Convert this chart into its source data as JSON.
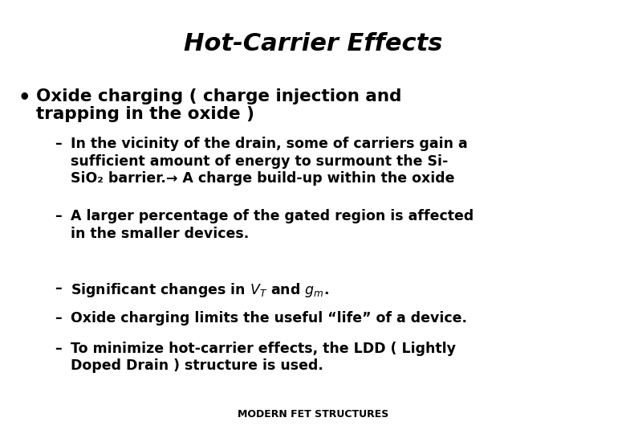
{
  "title": "Hot-Carrier Effects",
  "title_fontsize": 22,
  "bullet_text_line1": "Oxide charging ( charge injection and",
  "bullet_text_line2": "trapping in the oxide )",
  "bullet_fontsize": 15.5,
  "sub_bullets": [
    "In the vicinity of the drain, some of carriers gain a\nsufficient amount of energy to surmount the Si-\nSiO₂ barrier.→ A charge build-up within the oxide",
    "A larger percentage of the gated region is affected\nin the smaller devices.",
    "Significant changes in $V_T$ and $g_m$.",
    "Oxide charging limits the useful “life” of a device.",
    "To minimize hot-carrier effects, the LDD ( Lightly\nDoped Drain ) structure is used."
  ],
  "sub_bullet_fontsize": 12.5,
  "footer": "MODERN FET STRUCTURES",
  "footer_fontsize": 9,
  "background_color": "#ffffff",
  "text_color": "#000000",
  "fig_width": 7.8,
  "fig_height": 5.4,
  "dpi": 100
}
